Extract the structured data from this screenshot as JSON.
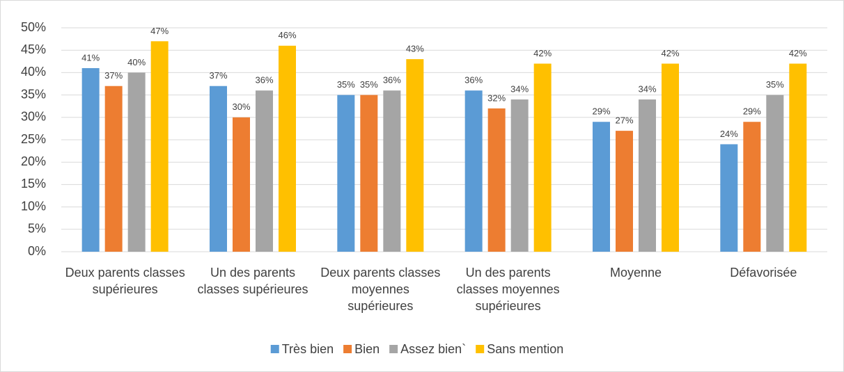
{
  "chart_data": {
    "type": "bar",
    "categories": [
      "Deux parents classes supérieures",
      "Un des parents classes supérieures",
      "Deux parents classes moyennes supérieures",
      "Un des parents classes moyennes supérieures",
      "Moyenne",
      "Défavorisée"
    ],
    "series": [
      {
        "name": "Très bien",
        "color": "#5b9bd5",
        "values": [
          41,
          37,
          35,
          36,
          29,
          24
        ],
        "value_labels": [
          "41%",
          "37%",
          "35%",
          "36%",
          "29%",
          "24%"
        ]
      },
      {
        "name": "Bien",
        "color": "#ed7d31",
        "values": [
          37,
          30,
          35,
          32,
          27,
          29
        ],
        "value_labels": [
          "37%",
          "30%",
          "35%",
          "32%",
          "27%",
          "29%"
        ]
      },
      {
        "name": "Assez bien`",
        "color": "#a5a5a5",
        "values": [
          40,
          36,
          36,
          34,
          34,
          35
        ],
        "value_labels": [
          "40%",
          "36%",
          "36%",
          "34%",
          "34%",
          "35%"
        ]
      },
      {
        "name": "Sans mention",
        "color": "#ffc000",
        "values": [
          47,
          46,
          43,
          42,
          42,
          42
        ],
        "value_labels": [
          "47%",
          "46%",
          "43%",
          "42%",
          "42%",
          "42%"
        ]
      }
    ],
    "ylim": [
      0,
      50
    ],
    "yticks": [
      {
        "value": 0,
        "label": "0%"
      },
      {
        "value": 5,
        "label": "5%"
      },
      {
        "value": 10,
        "label": "10%"
      },
      {
        "value": 15,
        "label": "15%"
      },
      {
        "value": 20,
        "label": "20%"
      },
      {
        "value": 25,
        "label": "25%"
      },
      {
        "value": 30,
        "label": "30%"
      },
      {
        "value": 35,
        "label": "35%"
      },
      {
        "value": 40,
        "label": "40%"
      },
      {
        "value": 45,
        "label": "45%"
      },
      {
        "value": 50,
        "label": "50%"
      }
    ],
    "grid": true,
    "legend": "bottom"
  }
}
